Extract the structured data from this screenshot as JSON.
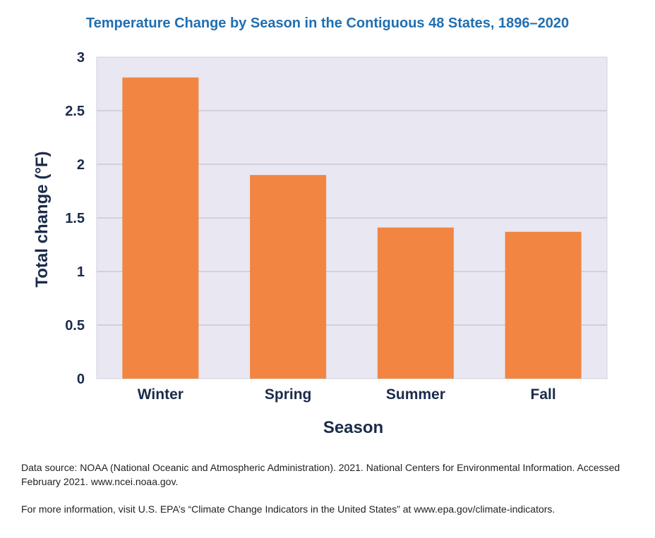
{
  "chart_data": {
    "type": "bar",
    "title": "Temperature Change by Season in the Contiguous 48 States, 1896–2020",
    "xlabel": "Season",
    "ylabel": "Total change (°F)",
    "categories": [
      "Winter",
      "Spring",
      "Summer",
      "Fall"
    ],
    "values": [
      2.81,
      1.9,
      1.41,
      1.37
    ],
    "ylim": [
      0,
      3
    ],
    "yticks": [
      "0",
      "0.5",
      "1",
      "1.5",
      "2",
      "2.5",
      "3"
    ],
    "grid": true,
    "legend": "none"
  },
  "notes": {
    "source": "Data source: NOAA (National Oceanic and Atmospheric Administration). 2021. National Centers for Environmental Information. Accessed February 2021. www.ncei.noaa.gov.",
    "more_info": "For more information, visit U.S. EPA’s “Climate Change Indicators in the United States” at www.epa.gov/climate-indicators."
  },
  "colors": {
    "bar": "#f28541",
    "plot_background": "#e9e7f1",
    "grid": "#d2d0db",
    "title": "#1f6fb2",
    "axis_text": "#1b2b4a"
  }
}
